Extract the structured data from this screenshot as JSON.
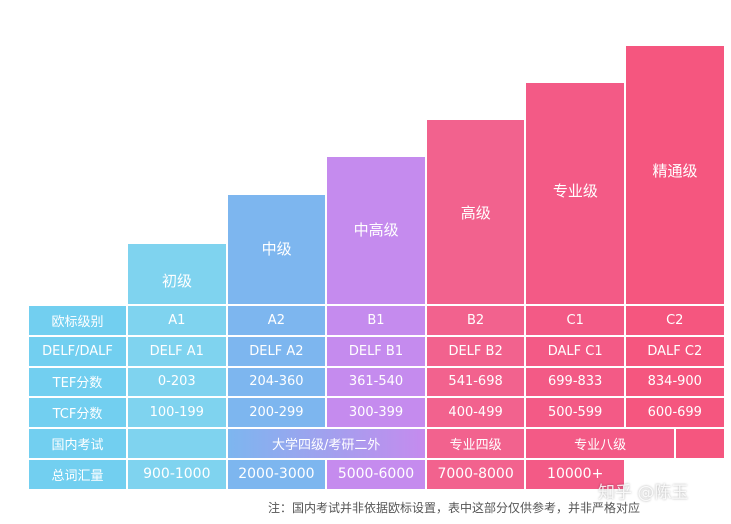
{
  "row_labels": [
    "欧标级别",
    "DELF/DALF",
    "TEF分数",
    "TCF分数",
    "国内考试",
    "总词汇量"
  ],
  "levels": [
    {
      "name": "初级",
      "cefr": "A1",
      "delf": "DELF A1",
      "tef": "0-203",
      "tcf": "100-199",
      "vocab": "900-1000"
    },
    {
      "name": "中级",
      "cefr": "A2",
      "delf": "DELF A2",
      "tef": "204-360",
      "tcf": "200-299",
      "vocab": "2000-3000"
    },
    {
      "name": "中高级",
      "cefr": "B1",
      "delf": "DELF B1",
      "tef": "361-540",
      "tcf": "300-399",
      "vocab": "5000-6000"
    },
    {
      "name": "高级",
      "cefr": "B2",
      "delf": "DELF B2",
      "tef": "541-698",
      "tcf": "400-499",
      "vocab": "7000-8000"
    },
    {
      "name": "专业级",
      "cefr": "C1",
      "delf": "DALF C1",
      "tef": "699-833",
      "tcf": "500-599",
      "vocab": "10000+"
    },
    {
      "name": "精通级",
      "cefr": "C2",
      "delf": "DALF C2",
      "tef": "834-900",
      "tcf": "600-699"
    }
  ],
  "domestic": [
    "大学四级/考研二外",
    "专业四级",
    "专业八级"
  ],
  "note": "注：国内考试并非依据欧标设置，表中这部分仅供参考，并非严格对应",
  "watermark": "知乎 @陈玉"
}
